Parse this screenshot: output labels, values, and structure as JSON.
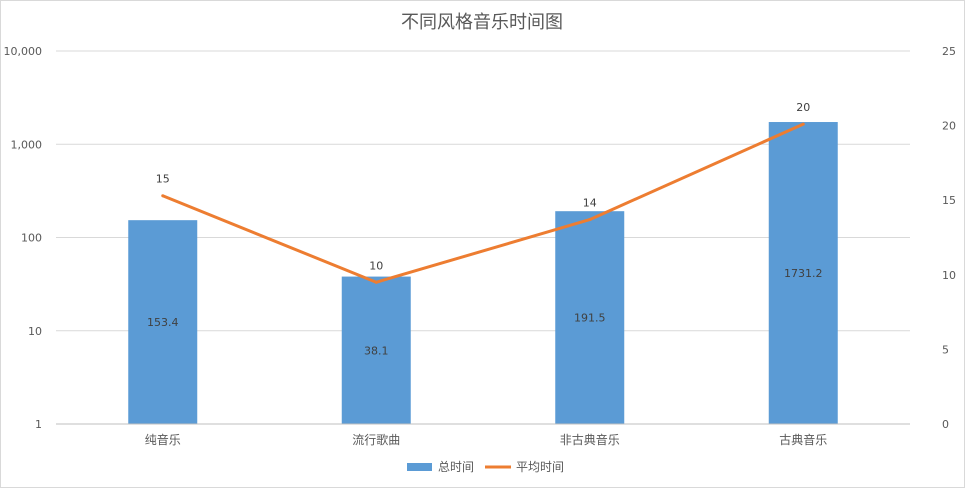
{
  "chart_data": {
    "type": "bar",
    "title": "不同风格音乐时间图",
    "categories": [
      "纯音乐",
      "流行歌曲",
      "非古典音乐",
      "古典音乐"
    ],
    "series": [
      {
        "name": "总时间",
        "type": "bar",
        "axis": "left",
        "values": [
          153.4,
          38.1,
          191.5,
          1731.2
        ],
        "color": "#5B9BD5",
        "data_labels": [
          "153.4",
          "38.1",
          "191.5",
          "1731.2"
        ]
      },
      {
        "name": "平均时间",
        "type": "line",
        "axis": "right",
        "values": [
          15.3,
          9.5,
          13.7,
          20.1
        ],
        "color": "#ED7D31",
        "data_labels": [
          "15",
          "10",
          "14",
          "20"
        ]
      }
    ],
    "y_left": {
      "scale": "log",
      "range": [
        1,
        10000
      ],
      "ticks": [
        1,
        10,
        100,
        1000,
        10000
      ],
      "tick_labels": [
        "1",
        "10",
        "100",
        "1,000",
        "10,000"
      ]
    },
    "y_right": {
      "scale": "linear",
      "range": [
        0,
        25
      ],
      "ticks": [
        0,
        5,
        10,
        15,
        20,
        25
      ],
      "tick_labels": [
        "0",
        "5",
        "10",
        "15",
        "20",
        "25"
      ]
    },
    "grid": true,
    "legend": "bottom"
  }
}
